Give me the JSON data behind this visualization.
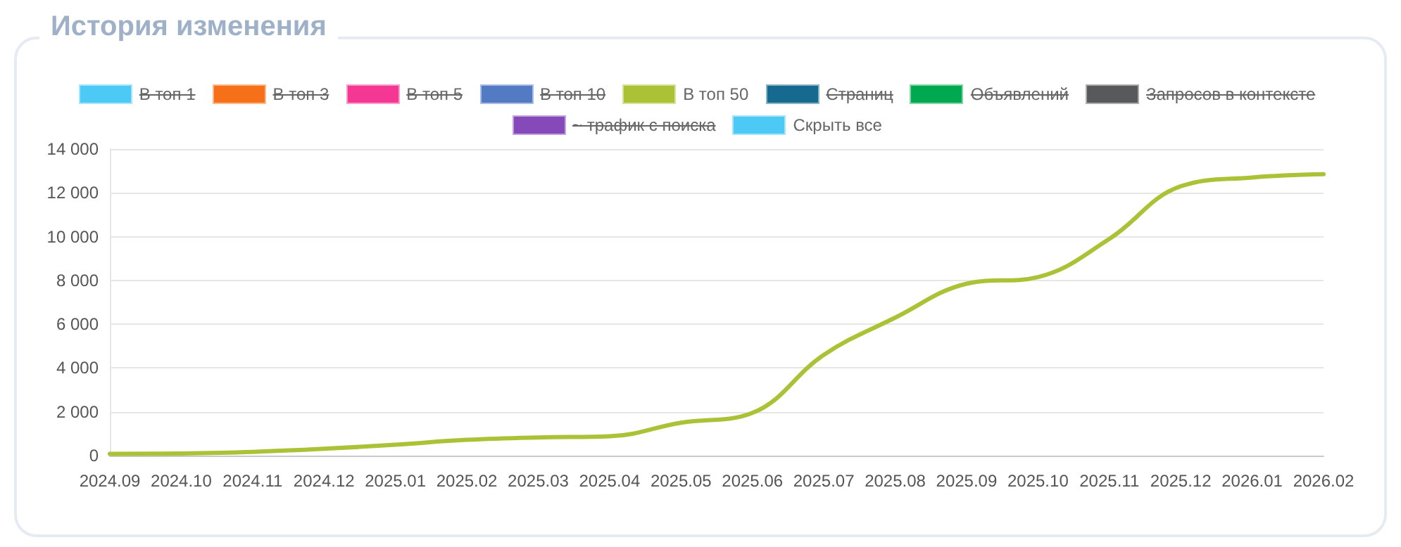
{
  "chart_data": {
    "type": "line",
    "title": "История изменения",
    "categories": [
      "2024.09",
      "2024.10",
      "2024.11",
      "2024.12",
      "2025.01",
      "2025.02",
      "2025.03",
      "2025.04",
      "2025.05",
      "2025.06",
      "2025.07",
      "2025.08",
      "2025.09",
      "2025.10",
      "2025.11",
      "2025.12",
      "2026.01",
      "2026.02"
    ],
    "series": [
      {
        "name": "В топ 1",
        "color": "#4dc9f6",
        "values": [
          null,
          null,
          null,
          null,
          null,
          null,
          null,
          null,
          null,
          null,
          null,
          null,
          null,
          null,
          null,
          null,
          null,
          null
        ]
      },
      {
        "name": "В топ 3",
        "color": "#f67019",
        "values": [
          null,
          null,
          null,
          null,
          null,
          null,
          null,
          null,
          null,
          null,
          null,
          null,
          null,
          null,
          null,
          null,
          null,
          null
        ]
      },
      {
        "name": "В топ 5",
        "color": "#f53794",
        "values": [
          null,
          null,
          null,
          null,
          null,
          null,
          null,
          null,
          null,
          null,
          null,
          null,
          null,
          null,
          null,
          null,
          null,
          null
        ]
      },
      {
        "name": "В топ 10",
        "color": "#537bc4",
        "values": [
          null,
          null,
          null,
          null,
          null,
          null,
          null,
          null,
          null,
          null,
          null,
          null,
          null,
          null,
          null,
          null,
          null,
          null
        ]
      },
      {
        "name": "В топ 50",
        "color": "#acc236",
        "values": [
          80,
          100,
          170,
          310,
          500,
          720,
          830,
          880,
          1500,
          1950,
          4600,
          6300,
          7850,
          8150,
          9900,
          12300,
          12700,
          12850
        ]
      },
      {
        "name": "Страниц",
        "color": "#166a8f",
        "values": [
          null,
          null,
          null,
          null,
          null,
          null,
          null,
          null,
          null,
          null,
          null,
          null,
          null,
          null,
          null,
          null,
          null,
          null
        ]
      },
      {
        "name": "Объявлений",
        "color": "#00a950",
        "values": [
          null,
          null,
          null,
          null,
          null,
          null,
          null,
          null,
          null,
          null,
          null,
          null,
          null,
          null,
          null,
          null,
          null,
          null
        ]
      },
      {
        "name": "Запросов в контексте",
        "color": "#58595b",
        "values": [
          null,
          null,
          null,
          null,
          null,
          null,
          null,
          null,
          null,
          null,
          null,
          null,
          null,
          null,
          null,
          null,
          null,
          null
        ]
      },
      {
        "name": "~ трафик с поиска",
        "color": "#8549ba",
        "values": [
          null,
          null,
          null,
          null,
          null,
          null,
          null,
          null,
          null,
          null,
          null,
          null,
          null,
          null,
          null,
          null,
          null,
          null
        ]
      }
    ],
    "annotations": [
      "Скрыть все"
    ],
    "ylim": [
      0,
      14000
    ],
    "yticks": [
      0,
      2000,
      4000,
      6000,
      8000,
      10000,
      12000,
      14000
    ],
    "grid": "y",
    "legend": "top",
    "marker": "none",
    "line_style": "solid"
  }
}
